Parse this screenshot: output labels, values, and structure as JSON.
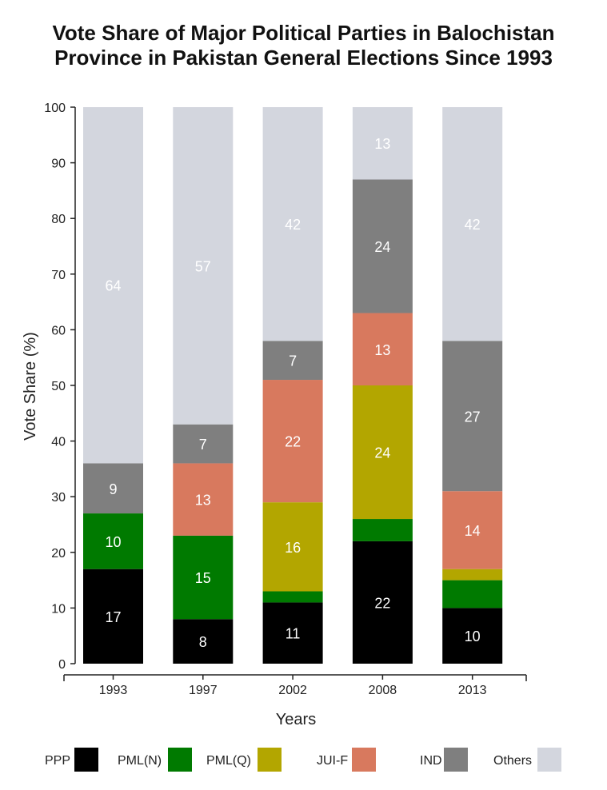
{
  "chart_data": {
    "type": "bar",
    "stacked": true,
    "title_lines": [
      "Vote Share of Major Political Parties in Balochistan",
      "Province in Pakistan General Elections Since 1993"
    ],
    "xlabel": "Years",
    "ylabel": "Vote Share (%)",
    "ylim": [
      0,
      100
    ],
    "yticks": [
      0,
      10,
      20,
      30,
      40,
      50,
      60,
      70,
      80,
      90,
      100
    ],
    "categories": [
      "1993",
      "1997",
      "2002",
      "2008",
      "2013"
    ],
    "series": [
      {
        "name": "PPP",
        "color": "#000000",
        "label_color": "#ffffff",
        "values": [
          17,
          8,
          11,
          22,
          10
        ],
        "labels": [
          "17",
          "8",
          "11",
          "22",
          "10"
        ]
      },
      {
        "name": "PML(N)",
        "color": "#007a00",
        "label_color": "#ffffff",
        "values": [
          10,
          15,
          2,
          4,
          5
        ],
        "labels": [
          "10",
          "15",
          "",
          "",
          ""
        ]
      },
      {
        "name": "PML(Q)",
        "color": "#b3a600",
        "label_color": "#ffffff",
        "values": [
          0,
          0,
          16,
          24,
          2
        ],
        "labels": [
          "",
          "",
          "16",
          "24",
          ""
        ]
      },
      {
        "name": "JUI-F",
        "color": "#d8795e",
        "label_color": "#ffffff",
        "values": [
          0,
          13,
          22,
          13,
          14
        ],
        "labels": [
          "",
          "13",
          "22",
          "13",
          "14"
        ]
      },
      {
        "name": "IND",
        "color": "#7f7f7f",
        "label_color": "#ffffff",
        "values": [
          9,
          7,
          7,
          24,
          27
        ],
        "labels": [
          "9",
          "7",
          "7",
          "24",
          "27"
        ]
      },
      {
        "name": "Others",
        "color": "#d3d6de",
        "label_color": "#ffffff",
        "values": [
          64,
          57,
          42,
          13,
          42
        ],
        "labels": [
          "64",
          "57",
          "42",
          "13",
          "42"
        ]
      }
    ],
    "legend": {
      "placement": "bottom"
    }
  }
}
